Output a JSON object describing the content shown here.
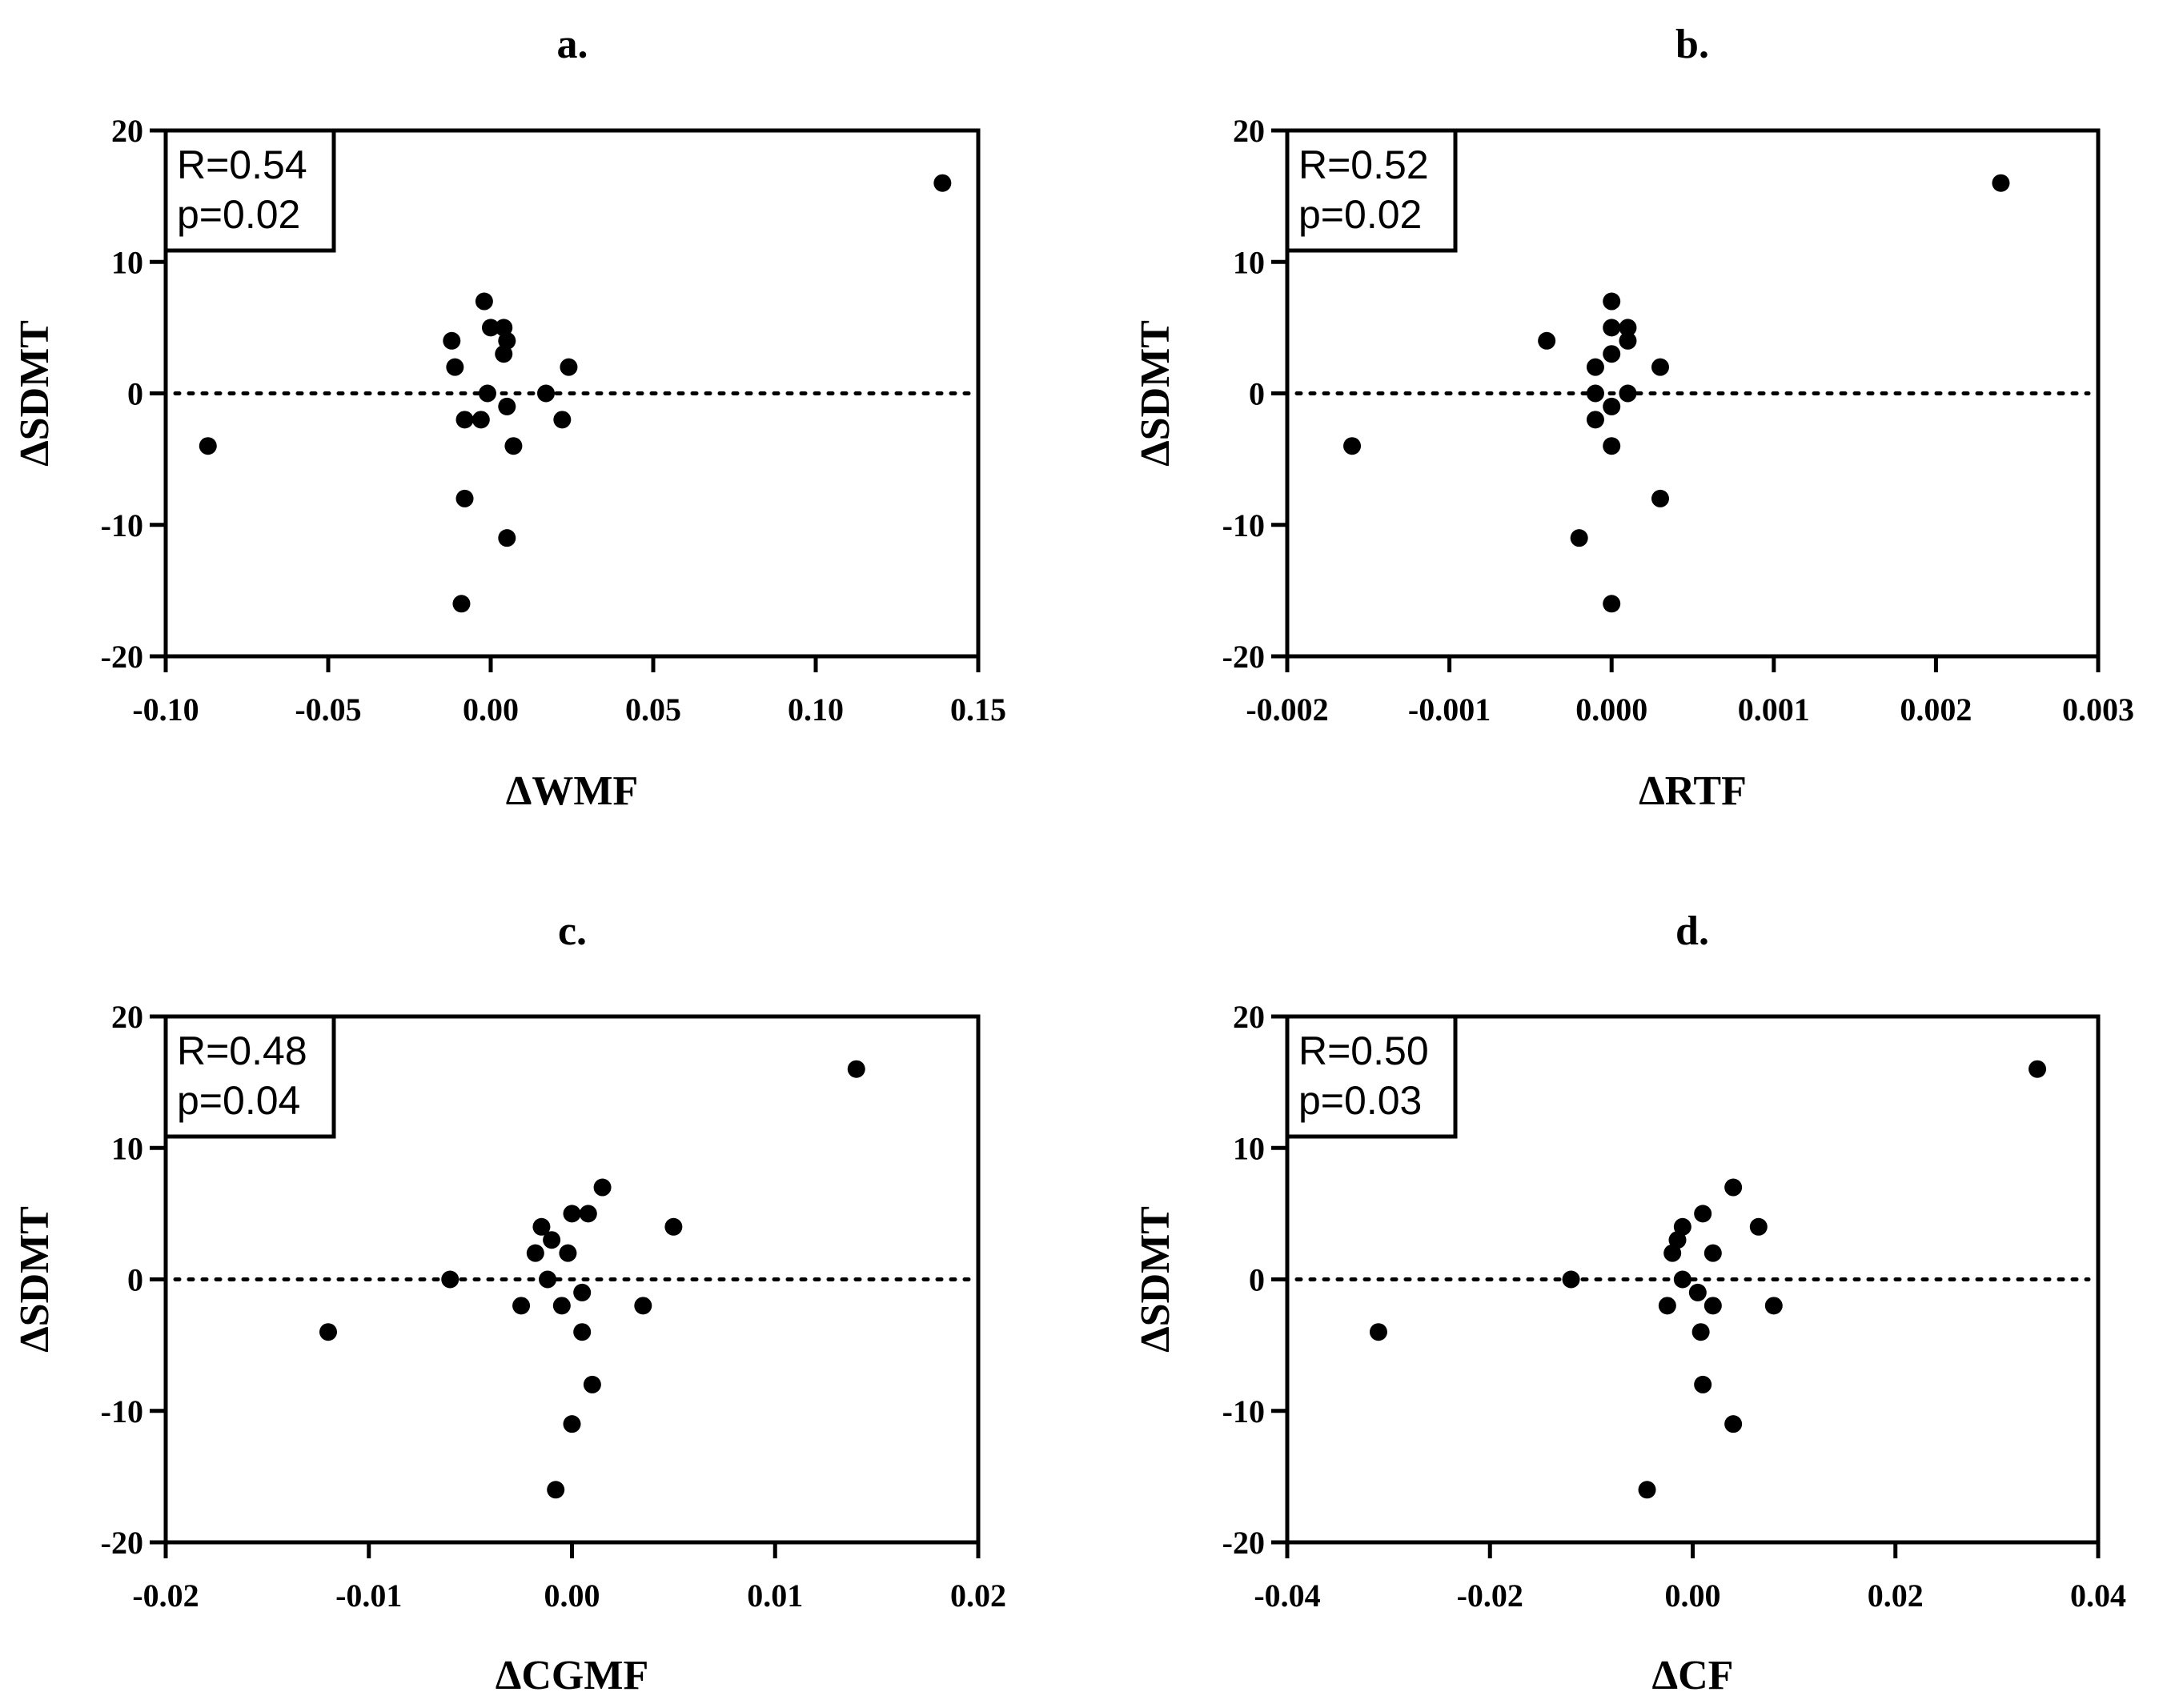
{
  "chart_data": [
    {
      "type": "scatter",
      "title": "a.",
      "xlabel": "ΔWMF",
      "ylabel": "ΔSDMT",
      "xlim": [
        -0.1,
        0.15
      ],
      "ylim": [
        -20,
        20
      ],
      "xticks": [
        -0.1,
        -0.05,
        0.0,
        0.05,
        0.1,
        0.15
      ],
      "xtick_labels": [
        "-0.10",
        "-0.05",
        "0.00",
        "0.05",
        "0.10",
        "0.15"
      ],
      "yticks": [
        -20,
        -10,
        0,
        10,
        20
      ],
      "ytick_labels": [
        "-20",
        "-10",
        "0",
        "10",
        "20"
      ],
      "reference_line": 0,
      "stats": {
        "r": "R=0.54",
        "p": "p=0.02"
      },
      "points": [
        {
          "x": -0.087,
          "y": -4
        },
        {
          "x": 0.139,
          "y": 16
        },
        {
          "x": -0.012,
          "y": 4
        },
        {
          "x": -0.011,
          "y": 2
        },
        {
          "x": -0.008,
          "y": -2
        },
        {
          "x": -0.008,
          "y": -8
        },
        {
          "x": -0.009,
          "y": -16
        },
        {
          "x": -0.003,
          "y": -2
        },
        {
          "x": -0.002,
          "y": 7
        },
        {
          "x": 0.0,
          "y": 5
        },
        {
          "x": -0.001,
          "y": 0
        },
        {
          "x": 0.004,
          "y": 5
        },
        {
          "x": 0.005,
          "y": 4
        },
        {
          "x": 0.004,
          "y": 3
        },
        {
          "x": 0.005,
          "y": -1
        },
        {
          "x": 0.007,
          "y": -4
        },
        {
          "x": 0.005,
          "y": -11
        },
        {
          "x": 0.017,
          "y": 0
        },
        {
          "x": 0.022,
          "y": -2
        },
        {
          "x": 0.024,
          "y": 2
        }
      ]
    },
    {
      "type": "scatter",
      "title": "b.",
      "xlabel": "ΔRTF",
      "ylabel": "ΔSDMT",
      "xlim": [
        -0.002,
        0.003
      ],
      "ylim": [
        -20,
        20
      ],
      "xticks": [
        -0.002,
        -0.001,
        0.0,
        0.001,
        0.002,
        0.003
      ],
      "xtick_labels": [
        "-0.002",
        "-0.001",
        "0.000",
        "0.001",
        "0.002",
        "0.003"
      ],
      "yticks": [
        -20,
        -10,
        0,
        10,
        20
      ],
      "ytick_labels": [
        "-20",
        "-10",
        "0",
        "10",
        "20"
      ],
      "reference_line": 0,
      "stats": {
        "r": "R=0.52",
        "p": "p=0.02"
      },
      "points": [
        {
          "x": -0.0016,
          "y": -4
        },
        {
          "x": 0.0024,
          "y": 16
        },
        {
          "x": -0.0004,
          "y": 4
        },
        {
          "x": -0.0001,
          "y": 2
        },
        {
          "x": -0.0001,
          "y": 0
        },
        {
          "x": -0.0001,
          "y": -2
        },
        {
          "x": -0.0002,
          "y": -11
        },
        {
          "x": 0.0,
          "y": 7
        },
        {
          "x": 0.0,
          "y": 5
        },
        {
          "x": 0.0,
          "y": 3
        },
        {
          "x": 0.0,
          "y": -1
        },
        {
          "x": 0.0,
          "y": -4
        },
        {
          "x": 0.0,
          "y": -16
        },
        {
          "x": 0.0001,
          "y": 5
        },
        {
          "x": 0.0001,
          "y": 4
        },
        {
          "x": 0.0001,
          "y": 0
        },
        {
          "x": 0.0003,
          "y": 2
        },
        {
          "x": 0.0003,
          "y": -8
        }
      ]
    },
    {
      "type": "scatter",
      "title": "c.",
      "xlabel": "ΔCGMF",
      "ylabel": "ΔSDMT",
      "xlim": [
        -0.02,
        0.02
      ],
      "ylim": [
        -20,
        20
      ],
      "xticks": [
        -0.02,
        -0.01,
        0.0,
        0.01,
        0.02
      ],
      "xtick_labels": [
        "-0.02",
        "-0.01",
        "0.00",
        "0.01",
        "0.02"
      ],
      "yticks": [
        -20,
        -10,
        0,
        10,
        20
      ],
      "ytick_labels": [
        "-20",
        "-10",
        "0",
        "10",
        "20"
      ],
      "reference_line": 0,
      "stats": {
        "r": "R=0.48",
        "p": "p=0.04"
      },
      "points": [
        {
          "x": -0.012,
          "y": -4
        },
        {
          "x": 0.014,
          "y": 16
        },
        {
          "x": -0.006,
          "y": 0
        },
        {
          "x": -0.0025,
          "y": -2
        },
        {
          "x": -0.0018,
          "y": 2
        },
        {
          "x": -0.0015,
          "y": 4
        },
        {
          "x": -0.0012,
          "y": 0
        },
        {
          "x": -0.001,
          "y": 3
        },
        {
          "x": -0.0008,
          "y": -16
        },
        {
          "x": -0.0005,
          "y": -2
        },
        {
          "x": -0.0002,
          "y": 2
        },
        {
          "x": 0.0,
          "y": 5
        },
        {
          "x": 0.0,
          "y": -11
        },
        {
          "x": 0.0005,
          "y": -1
        },
        {
          "x": 0.0005,
          "y": -4
        },
        {
          "x": 0.0008,
          "y": 5
        },
        {
          "x": 0.001,
          "y": -8
        },
        {
          "x": 0.0015,
          "y": 7
        },
        {
          "x": 0.0035,
          "y": -2
        },
        {
          "x": 0.005,
          "y": 4
        }
      ]
    },
    {
      "type": "scatter",
      "title": "d.",
      "xlabel": "ΔCF",
      "ylabel": "ΔSDMT",
      "xlim": [
        -0.04,
        0.04
      ],
      "ylim": [
        -20,
        20
      ],
      "xticks": [
        -0.04,
        -0.02,
        0.0,
        0.02,
        0.04
      ],
      "xtick_labels": [
        "-0.04",
        "-0.02",
        "0.00",
        "0.02",
        "0.04"
      ],
      "yticks": [
        -20,
        -10,
        0,
        10,
        20
      ],
      "ytick_labels": [
        "-20",
        "-10",
        "0",
        "10",
        "20"
      ],
      "reference_line": 0,
      "stats": {
        "r": "R=0.50",
        "p": "p=0.03"
      },
      "points": [
        {
          "x": -0.031,
          "y": -4
        },
        {
          "x": 0.034,
          "y": 16
        },
        {
          "x": -0.012,
          "y": 0
        },
        {
          "x": -0.0045,
          "y": -16
        },
        {
          "x": -0.0025,
          "y": -2
        },
        {
          "x": -0.002,
          "y": 2
        },
        {
          "x": -0.0015,
          "y": 3
        },
        {
          "x": -0.001,
          "y": 4
        },
        {
          "x": -0.001,
          "y": 0
        },
        {
          "x": 0.0005,
          "y": -1
        },
        {
          "x": 0.0008,
          "y": -4
        },
        {
          "x": 0.001,
          "y": -8
        },
        {
          "x": 0.001,
          "y": 5
        },
        {
          "x": 0.002,
          "y": 2
        },
        {
          "x": 0.002,
          "y": -2
        },
        {
          "x": 0.004,
          "y": 7
        },
        {
          "x": 0.004,
          "y": -11
        },
        {
          "x": 0.0065,
          "y": 4
        },
        {
          "x": 0.008,
          "y": -2
        }
      ]
    }
  ]
}
